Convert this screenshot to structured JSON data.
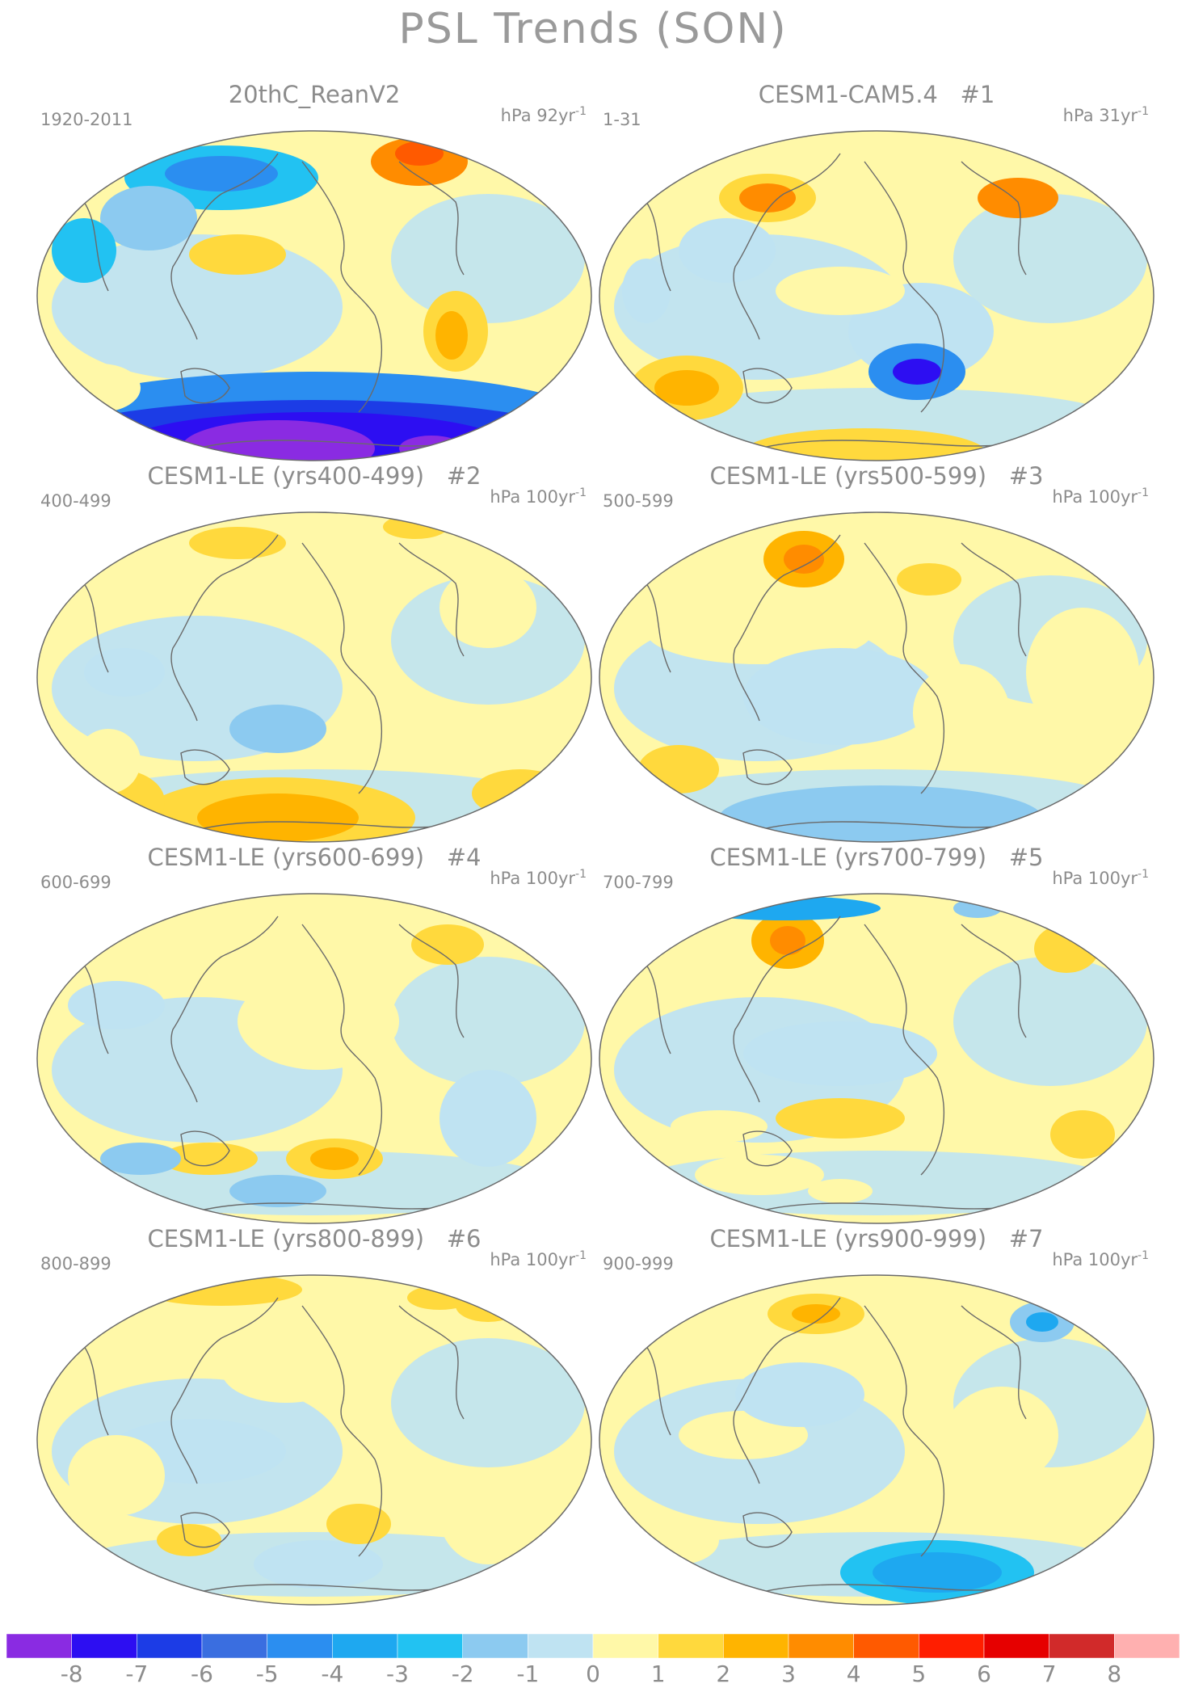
{
  "title": "PSL Trends (SON)",
  "panels": [
    {
      "title": "20thC_ReanV2",
      "tag": "",
      "years": "1920-2011",
      "units": "hPa 92yr",
      "units_exp": "-1"
    },
    {
      "title": "CESM1-CAM5.4",
      "tag": "#1",
      "years": "1-31",
      "units": "hPa 31yr",
      "units_exp": "-1"
    },
    {
      "title": "CESM1-LE (yrs400-499)",
      "tag": "#2",
      "years": "400-499",
      "units": "hPa 100yr",
      "units_exp": "-1"
    },
    {
      "title": "CESM1-LE (yrs500-599)",
      "tag": "#3",
      "years": "500-599",
      "units": "hPa 100yr",
      "units_exp": "-1"
    },
    {
      "title": "CESM1-LE (yrs600-699)",
      "tag": "#4",
      "years": "600-699",
      "units": "hPa 100yr",
      "units_exp": "-1"
    },
    {
      "title": "CESM1-LE (yrs700-799)",
      "tag": "#5",
      "years": "700-799",
      "units": "hPa 100yr",
      "units_exp": "-1"
    },
    {
      "title": "CESM1-LE (yrs800-899)",
      "tag": "#6",
      "years": "800-899",
      "units": "hPa 100yr",
      "units_exp": "-1"
    },
    {
      "title": "CESM1-LE (yrs900-999)",
      "tag": "#7",
      "years": "900-999",
      "units": "hPa 100yr",
      "units_exp": "-1"
    }
  ],
  "colorbar": {
    "labels": [
      "-8",
      "-7",
      "-6",
      "-5",
      "-4",
      "-3",
      "-2",
      "-1",
      "0",
      "1",
      "2",
      "3",
      "4",
      "5",
      "6",
      "7",
      "8"
    ],
    "colors": [
      "#8a2be2",
      "#2d0ef2",
      "#1c3ce6",
      "#3a6ee0",
      "#2b8ef0",
      "#1ea8f0",
      "#22c2f2",
      "#8ccaf0",
      "#bfe3f2",
      "#fff8a8",
      "#ffd93d",
      "#ffb400",
      "#ff8c00",
      "#ff5a00",
      "#ff1e00",
      "#e60000",
      "#d12a2a",
      "#ffb0b0"
    ]
  },
  "palette": {
    "ocean_neutral_pos": "#fff8a8",
    "ocean_neutral_neg": "#bfe3f2",
    "coast": "#6a6a6a"
  }
}
